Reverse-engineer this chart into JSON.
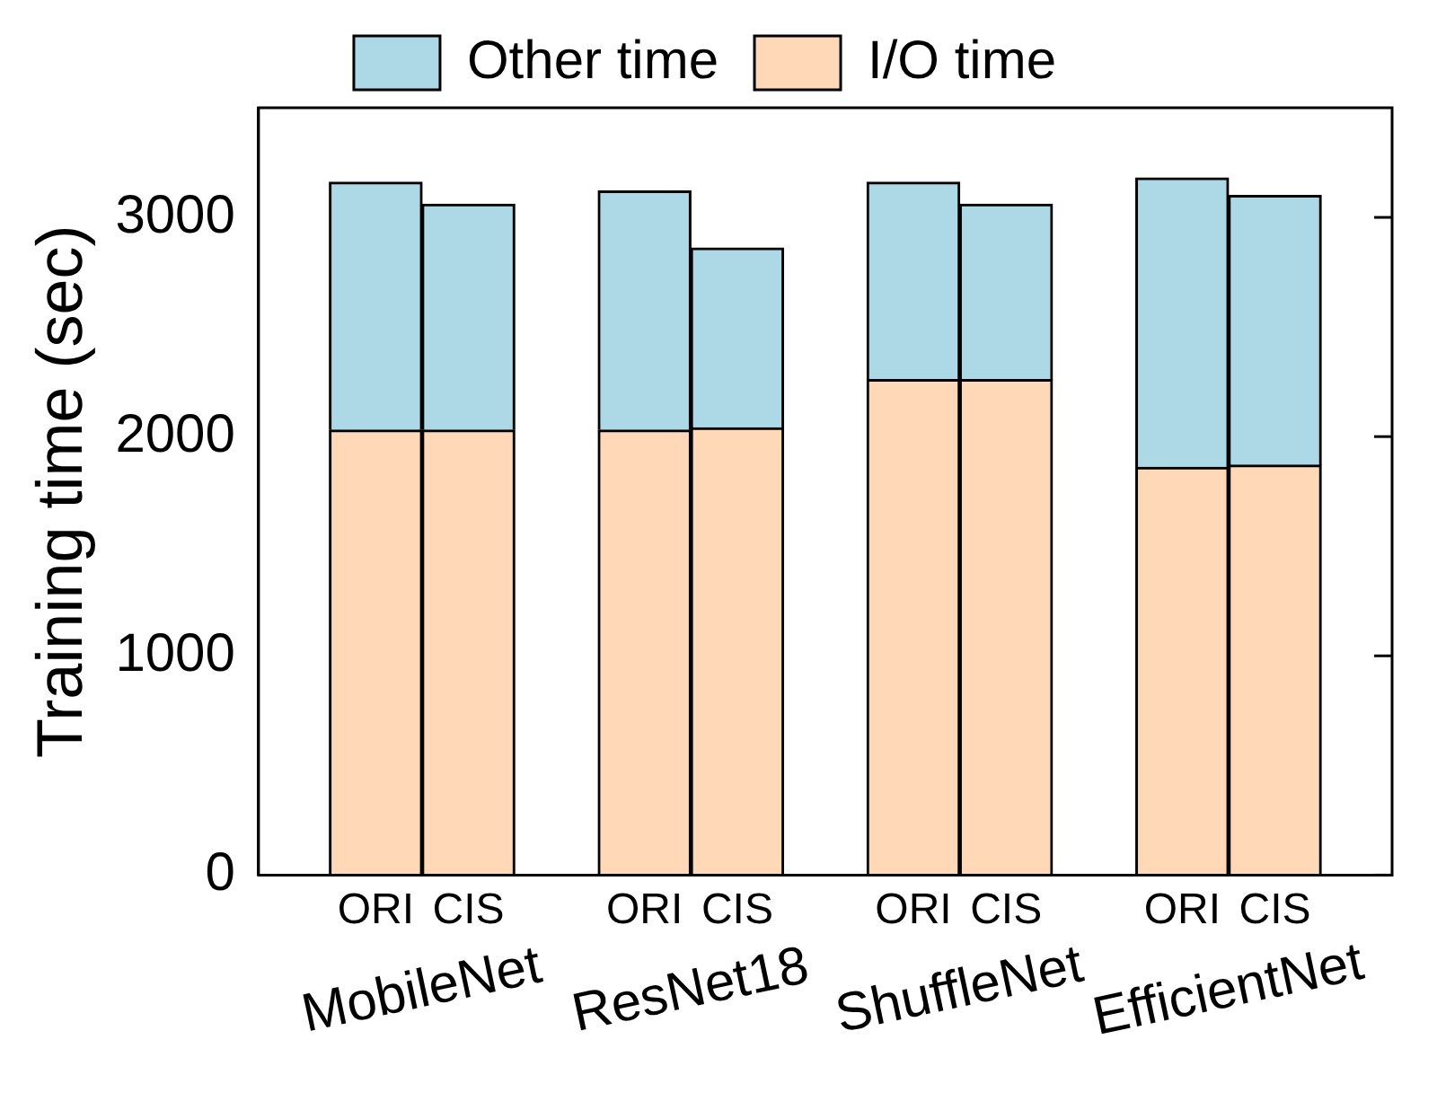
{
  "chart_data": {
    "type": "bar",
    "stacked": true,
    "ylabel": "Training time (sec)",
    "categories": [
      "ORI",
      "CIS",
      "ORI",
      "CIS",
      "ORI",
      "CIS",
      "ORI",
      "CIS"
    ],
    "series": [
      {
        "name": "I/O time",
        "color": "#ffd8b8",
        "values": [
          2030,
          2030,
          2030,
          2040,
          2260,
          2260,
          1860,
          1870
        ]
      },
      {
        "name": "Other time",
        "color": "#add8e6",
        "values": [
          1130,
          1030,
          1090,
          820,
          900,
          800,
          1320,
          1230
        ]
      }
    ],
    "annotations": [
      "MobileNet",
      "ResNet18",
      "ShuffleNet",
      "EfficientNet"
    ],
    "ylim": [
      0,
      3500
    ],
    "yticks": [
      0,
      1000,
      2000,
      3000
    ],
    "grid": false,
    "legend": "top"
  }
}
